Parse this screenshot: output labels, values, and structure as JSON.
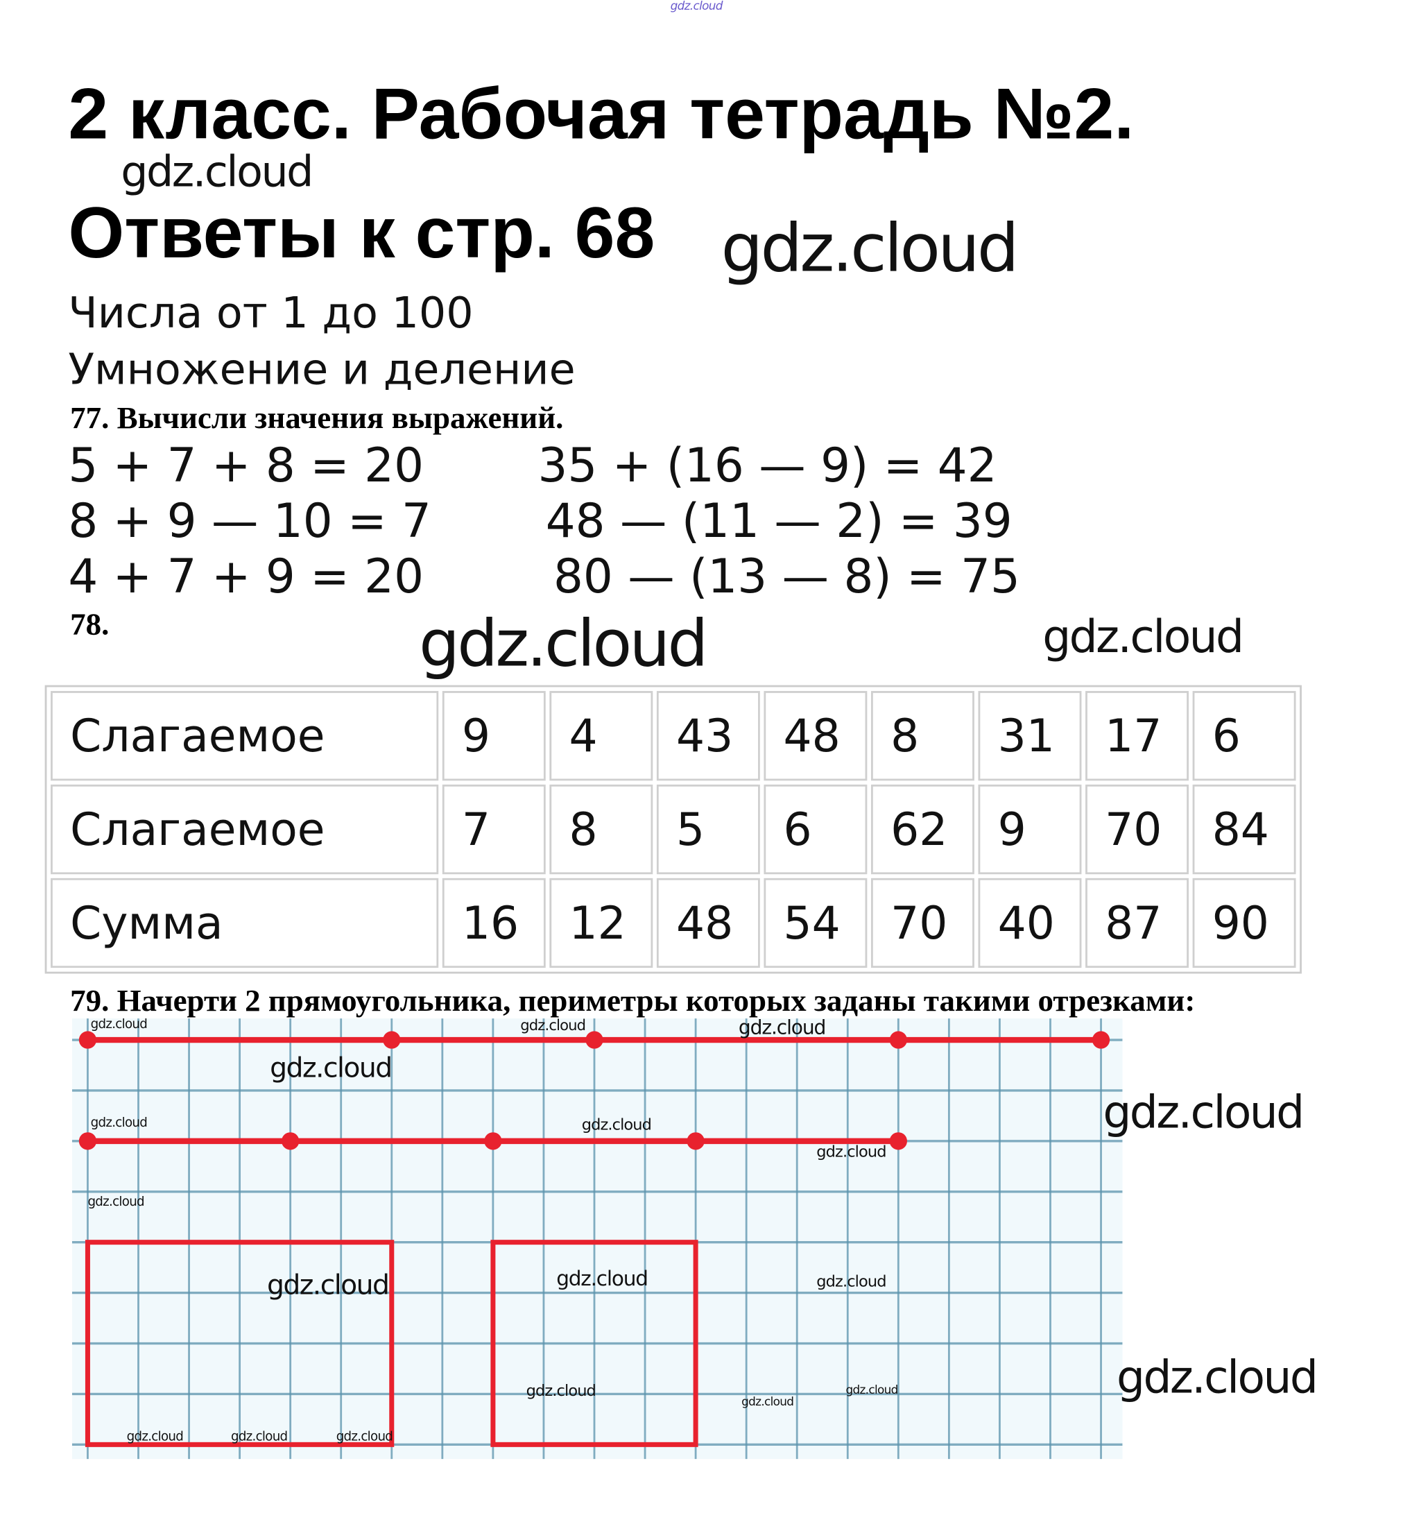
{
  "watermark": "gdz.cloud",
  "title": {
    "line1": "2 класс. Рабочая тетрадь №2.",
    "line2": "Ответы к стр. 68"
  },
  "subtitle": {
    "line1": "Числа от 1 до 100",
    "line2": "Умножение и деление"
  },
  "task77": {
    "heading": "77. Вычисли значения выражений.",
    "left": [
      "5 + 7 + 8 = 20",
      "8 + 9 — 10 = 7",
      "4 + 7 + 9 = 20"
    ],
    "right": [
      "35 + (16 — 9) = 42",
      "48 — (11 — 2) = 39",
      "80 — (13 — 8) = 75"
    ]
  },
  "task78": {
    "heading": "78.",
    "rows": [
      {
        "label": "Слагаемое",
        "values": [
          "9",
          "4",
          "43",
          "48",
          "8",
          "31",
          "17",
          "6"
        ]
      },
      {
        "label": "Слагаемое",
        "values": [
          "7",
          "8",
          "5",
          "6",
          "62",
          "9",
          "70",
          "84"
        ]
      },
      {
        "label": "Сумма",
        "values": [
          "16",
          "12",
          "48",
          "54",
          "70",
          "40",
          "87",
          "90"
        ]
      }
    ]
  },
  "task79": {
    "heading": "79. Начерти 2 прямоугольника, периметры которых заданы такими отрезками:",
    "segment1_cells": [
      6,
      4,
      6,
      4
    ],
    "segment2_cells": [
      4,
      4,
      4,
      4
    ],
    "rectangles_cells": [
      [
        6,
        4
      ],
      [
        4,
        4
      ]
    ]
  },
  "colors": {
    "red": "#e8222e",
    "grid": "#5b93ad",
    "grid_bg": "#f1f9fc"
  }
}
